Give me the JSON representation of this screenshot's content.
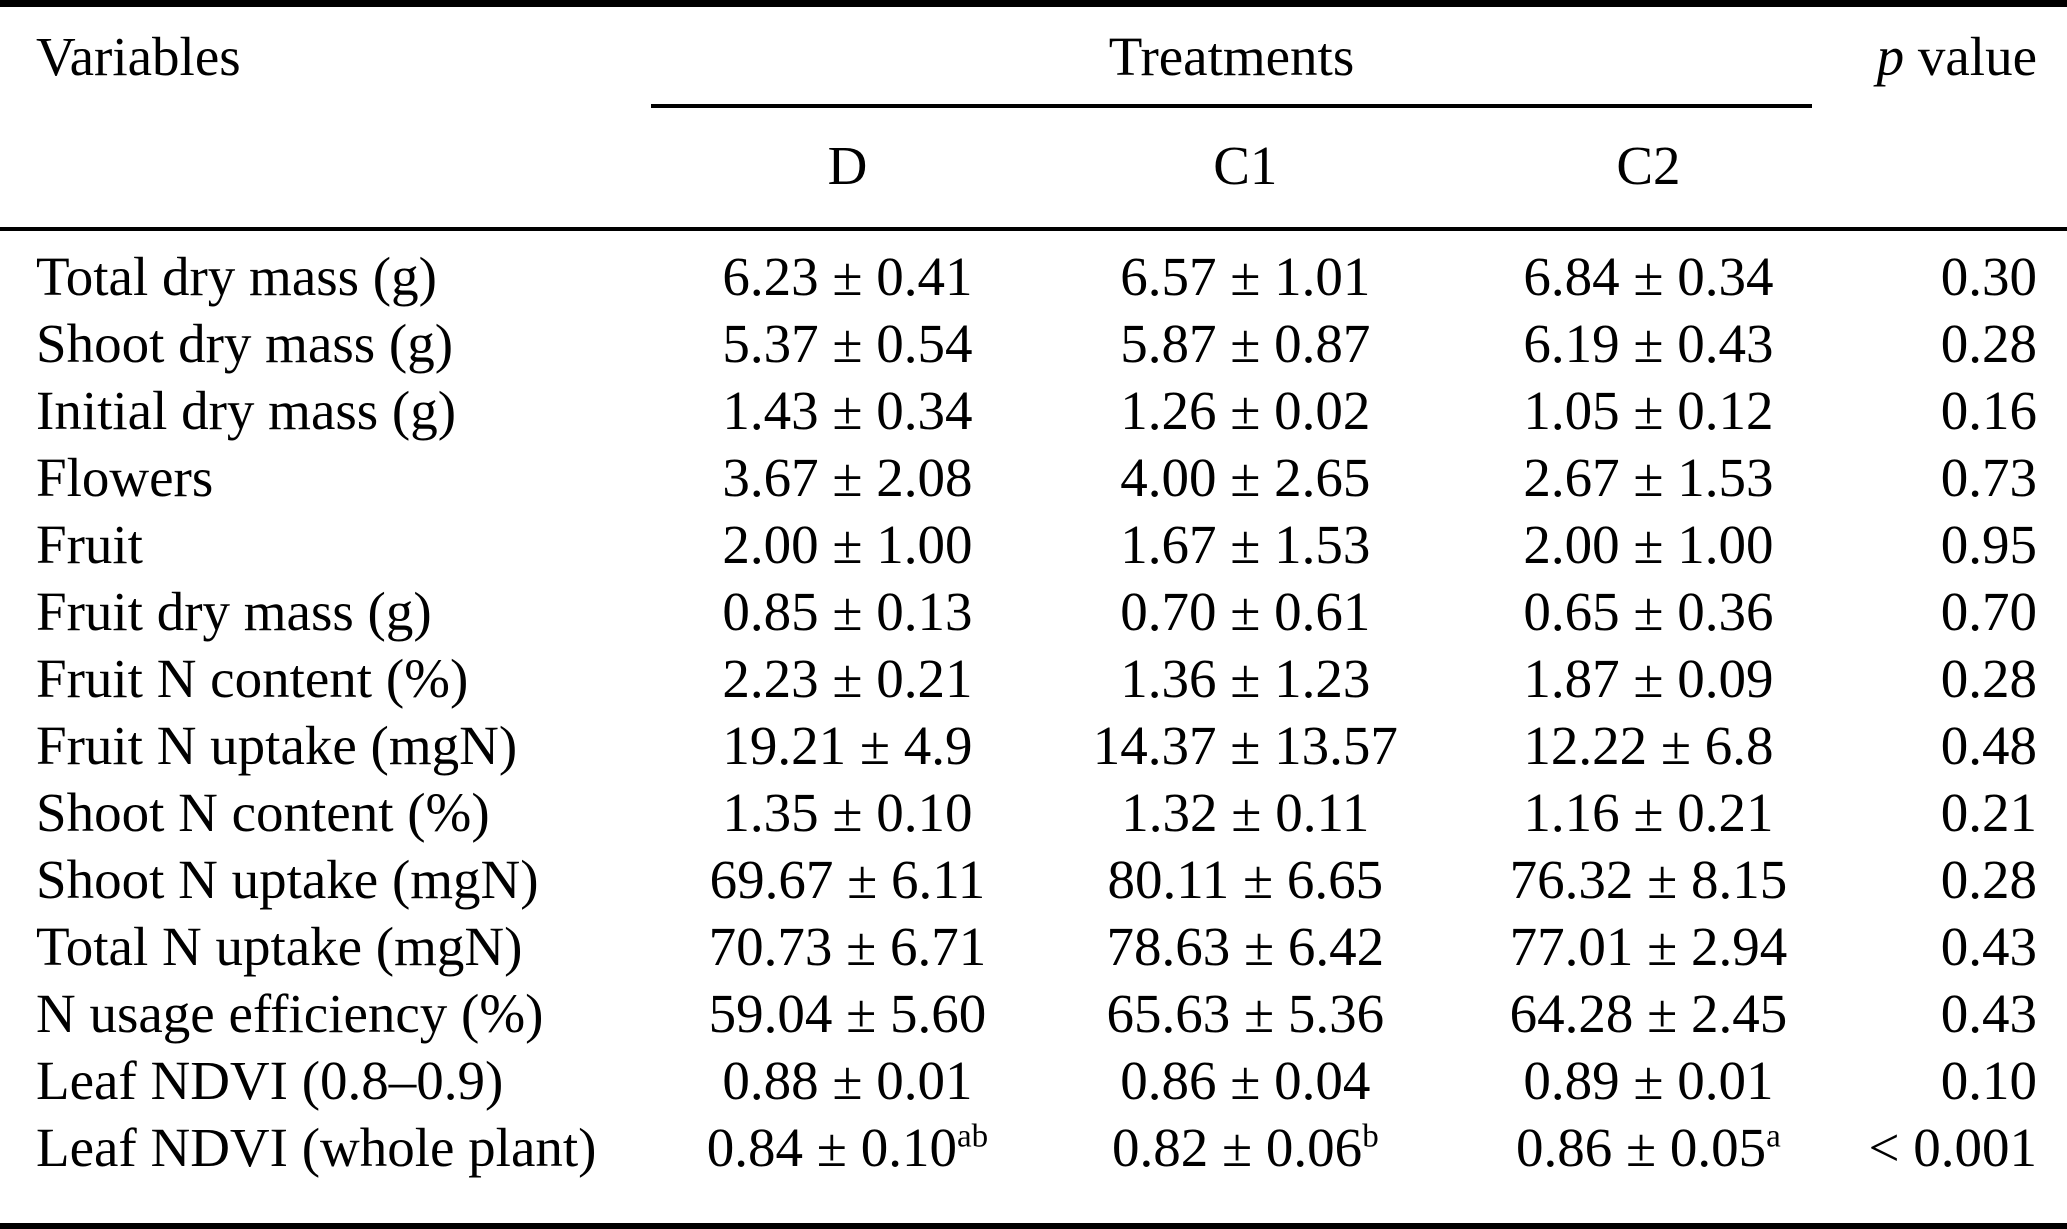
{
  "table": {
    "header": {
      "variables": "Variables",
      "treatments": "Treatments",
      "treatment_cols": [
        "D",
        "C1",
        "C2"
      ],
      "p_label_italic": "p",
      "p_label_rest": " value"
    },
    "rows": [
      {
        "variable": "Total dry mass (g)",
        "d": "6.23 ± 0.41",
        "d_sup": "",
        "c1": "6.57 ± 1.01",
        "c1_sup": "",
        "c2": "6.84 ± 0.34",
        "c2_sup": "",
        "p": "0.30"
      },
      {
        "variable": "Shoot dry mass (g)",
        "d": "5.37 ± 0.54",
        "d_sup": "",
        "c1": "5.87 ± 0.87",
        "c1_sup": "",
        "c2": "6.19 ± 0.43",
        "c2_sup": "",
        "p": "0.28"
      },
      {
        "variable": "Initial dry mass (g)",
        "d": "1.43 ± 0.34",
        "d_sup": "",
        "c1": "1.26 ± 0.02",
        "c1_sup": "",
        "c2": "1.05 ± 0.12",
        "c2_sup": "",
        "p": "0.16"
      },
      {
        "variable": "Flowers",
        "d": "3.67 ± 2.08",
        "d_sup": "",
        "c1": "4.00 ± 2.65",
        "c1_sup": "",
        "c2": "2.67 ± 1.53",
        "c2_sup": "",
        "p": "0.73"
      },
      {
        "variable": "Fruit",
        "d": "2.00 ± 1.00",
        "d_sup": "",
        "c1": "1.67 ± 1.53",
        "c1_sup": "",
        "c2": "2.00 ± 1.00",
        "c2_sup": "",
        "p": "0.95"
      },
      {
        "variable": "Fruit dry mass (g)",
        "d": "0.85 ± 0.13",
        "d_sup": "",
        "c1": "0.70 ± 0.61",
        "c1_sup": "",
        "c2": "0.65 ± 0.36",
        "c2_sup": "",
        "p": "0.70"
      },
      {
        "variable": "Fruit N content (%)",
        "d": "2.23 ± 0.21",
        "d_sup": "",
        "c1": "1.36 ± 1.23",
        "c1_sup": "",
        "c2": "1.87 ± 0.09",
        "c2_sup": "",
        "p": "0.28"
      },
      {
        "variable": "Fruit N uptake (mgN)",
        "d": "19.21 ± 4.9",
        "d_sup": "",
        "c1": "14.37 ± 13.57",
        "c1_sup": "",
        "c2": "12.22 ± 6.8",
        "c2_sup": "",
        "p": "0.48"
      },
      {
        "variable": "Shoot N content (%)",
        "d": "1.35 ± 0.10",
        "d_sup": "",
        "c1": "1.32 ± 0.11",
        "c1_sup": "",
        "c2": "1.16 ± 0.21",
        "c2_sup": "",
        "p": "0.21"
      },
      {
        "variable": "Shoot N uptake (mgN)",
        "d": "69.67 ± 6.11",
        "d_sup": "",
        "c1": "80.11 ± 6.65",
        "c1_sup": "",
        "c2": "76.32 ± 8.15",
        "c2_sup": "",
        "p": "0.28"
      },
      {
        "variable": "Total N uptake (mgN)",
        "d": "70.73 ± 6.71",
        "d_sup": "",
        "c1": "78.63 ± 6.42",
        "c1_sup": "",
        "c2": "77.01 ± 2.94",
        "c2_sup": "",
        "p": "0.43"
      },
      {
        "variable": "N usage efficiency (%)",
        "d": "59.04 ± 5.60",
        "d_sup": "",
        "c1": "65.63 ± 5.36",
        "c1_sup": "",
        "c2": "64.28 ± 2.45",
        "c2_sup": "",
        "p": "0.43"
      },
      {
        "variable": "Leaf NDVI (0.8–0.9)",
        "d": "0.88 ± 0.01",
        "d_sup": "",
        "c1": "0.86 ± 0.04",
        "c1_sup": "",
        "c2": "0.89 ± 0.01",
        "c2_sup": "",
        "p": "0.10"
      },
      {
        "variable": "Leaf NDVI (whole plant)",
        "d": "0.84 ± 0.10",
        "d_sup": "ab",
        "c1": "0.82 ± 0.06",
        "c1_sup": "b",
        "c2": "0.86 ± 0.05",
        "c2_sup": "a",
        "p": "< 0.001"
      }
    ]
  }
}
